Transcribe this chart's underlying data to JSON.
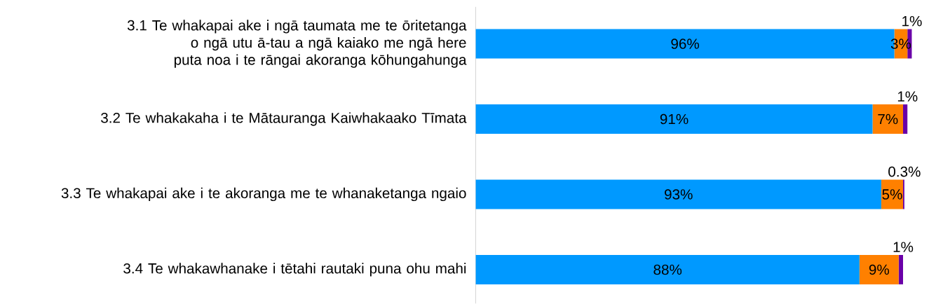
{
  "chart_data": {
    "type": "bar",
    "orientation": "horizontal",
    "stacked": true,
    "categories": [
      "3.1 Te whakapai ake i ngā taumata me te ōritetanga o ngā utu ā-tau a ngā kaiako me ngā here puta noa i te rāngai akoranga kōhungahunga",
      "3.2 Te whakakaha i te Mātauranga Kaiwhakaako Tīmata",
      "3.3 Te whakapai ake i te akoranga me te whanaketanga ngaio",
      "3.4 Te whakawhanake i tētahi rautaki puna ohu mahi"
    ],
    "xlim": [
      0,
      100
    ],
    "series": [
      {
        "color": "#0099ff",
        "values": [
          96,
          91,
          93,
          88
        ],
        "value_labels": [
          "96%",
          "91%",
          "93%",
          "88%"
        ]
      },
      {
        "color": "#ff8000",
        "values": [
          3,
          7,
          5,
          9
        ],
        "value_labels": [
          "3%",
          "7%",
          "5%",
          "9%"
        ]
      },
      {
        "color": "#6a00a8",
        "values": [
          1,
          1,
          0.3,
          1
        ],
        "value_labels": [
          "1%",
          "1%",
          "0.3%",
          "1%"
        ]
      }
    ]
  }
}
